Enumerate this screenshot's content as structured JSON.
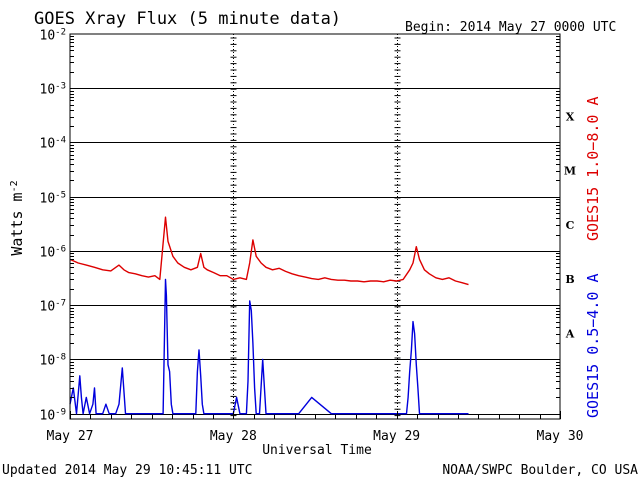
{
  "chart_data": {
    "type": "line",
    "title": "GOES Xray Flux (5 minute data)",
    "begin_label": "Begin:  2014 May 27 0000 UTC",
    "ylabel_base": "Watts m",
    "ylabel_exp": "-2",
    "xlabel": "Universal Time",
    "x_ticks": [
      "May 27",
      "May 28",
      "May 29",
      "May 30"
    ],
    "x_range_days": [
      0,
      3
    ],
    "y_scale": "log",
    "y_ticks": [
      {
        "base": "10",
        "exp": "-2",
        "value": 0.01
      },
      {
        "base": "10",
        "exp": "-3",
        "value": 0.001
      },
      {
        "base": "10",
        "exp": "-4",
        "value": 0.0001
      },
      {
        "base": "10",
        "exp": "-5",
        "value": 1e-05
      },
      {
        "base": "10",
        "exp": "-6",
        "value": 1e-06
      },
      {
        "base": "10",
        "exp": "-7",
        "value": 1e-07
      },
      {
        "base": "10",
        "exp": "-8",
        "value": 1e-08
      },
      {
        "base": "10",
        "exp": "-9",
        "value": 1e-09
      }
    ],
    "ylim": [
      8e-10,
      0.01
    ],
    "flare_classes": [
      {
        "label": "X",
        "value": 0.000316
      },
      {
        "label": "M",
        "value": 3.16e-05
      },
      {
        "label": "C",
        "value": 3.16e-06
      },
      {
        "label": "B",
        "value": 3.16e-07
      },
      {
        "label": "A",
        "value": 3.16e-08
      }
    ],
    "series": [
      {
        "name": "GOES15 1.0−8.0 A",
        "color": "#dd0000",
        "x": [
          0.0,
          0.05,
          0.1,
          0.15,
          0.2,
          0.25,
          0.3,
          0.33,
          0.36,
          0.4,
          0.44,
          0.48,
          0.52,
          0.55,
          0.585,
          0.6,
          0.63,
          0.66,
          0.7,
          0.74,
          0.78,
          0.8,
          0.82,
          0.84,
          0.88,
          0.92,
          0.96,
          1.0,
          1.04,
          1.08,
          1.1,
          1.12,
          1.14,
          1.17,
          1.2,
          1.24,
          1.28,
          1.32,
          1.36,
          1.4,
          1.44,
          1.48,
          1.52,
          1.56,
          1.6,
          1.64,
          1.68,
          1.72,
          1.76,
          1.8,
          1.84,
          1.88,
          1.92,
          1.96,
          2.0,
          2.04,
          2.08,
          2.1,
          2.12,
          2.14,
          2.17,
          2.2,
          2.24,
          2.28,
          2.32,
          2.36,
          2.4,
          2.44
        ],
        "values": [
          7e-07,
          6e-07,
          5.5e-07,
          5e-07,
          4.5e-07,
          4.3e-07,
          5.5e-07,
          4.5e-07,
          4e-07,
          3.8e-07,
          3.5e-07,
          3.3e-07,
          3.5e-07,
          3e-07,
          4.2e-06,
          1.5e-06,
          8e-07,
          6e-07,
          5e-07,
          4.5e-07,
          5e-07,
          9e-07,
          5e-07,
          4.5e-07,
          4e-07,
          3.5e-07,
          3.5e-07,
          3e-07,
          3.2e-07,
          3e-07,
          6e-07,
          1.6e-06,
          8e-07,
          6e-07,
          5e-07,
          4.5e-07,
          4.8e-07,
          4.2e-07,
          3.8e-07,
          3.5e-07,
          3.3e-07,
          3.1e-07,
          3e-07,
          3.2e-07,
          3e-07,
          2.9e-07,
          2.9e-07,
          2.8e-07,
          2.8e-07,
          2.7e-07,
          2.8e-07,
          2.8e-07,
          2.7e-07,
          2.9e-07,
          2.8e-07,
          3e-07,
          4.5e-07,
          6e-07,
          1.2e-06,
          7e-07,
          4.5e-07,
          3.8e-07,
          3.2e-07,
          3e-07,
          3.2e-07,
          2.8e-07,
          2.6e-07,
          2.4e-07
        ]
      },
      {
        "name": "GOES15 0.5−4.0 A",
        "color": "#0000dd",
        "x": [
          0.0,
          0.02,
          0.04,
          0.06,
          0.07,
          0.08,
          0.1,
          0.12,
          0.14,
          0.15,
          0.16,
          0.18,
          0.2,
          0.22,
          0.24,
          0.26,
          0.28,
          0.3,
          0.32,
          0.34,
          0.36,
          0.4,
          0.44,
          0.5,
          0.54,
          0.57,
          0.585,
          0.59,
          0.6,
          0.61,
          0.62,
          0.63,
          0.64,
          0.66,
          0.7,
          0.74,
          0.77,
          0.78,
          0.79,
          0.8,
          0.81,
          0.82,
          0.84,
          0.86,
          0.88,
          0.9,
          0.92,
          0.95,
          1.0,
          1.02,
          1.04,
          1.06,
          1.08,
          1.09,
          1.1,
          1.11,
          1.12,
          1.13,
          1.14,
          1.16,
          1.18,
          1.2,
          1.22,
          1.24,
          1.26,
          1.3,
          1.4,
          1.48,
          1.6,
          1.8,
          2.0,
          2.04,
          2.06,
          2.07,
          2.08,
          2.09,
          2.1,
          2.11,
          2.12,
          2.13,
          2.14,
          2.16,
          2.2,
          2.3,
          2.4,
          2.44
        ],
        "values": [
          1.5e-09,
          3e-09,
          1e-09,
          5e-09,
          2e-09,
          1e-09,
          2e-09,
          1e-09,
          1.5e-09,
          3e-09,
          1e-09,
          1e-09,
          1e-09,
          1.5e-09,
          1e-09,
          1e-09,
          1e-09,
          1.5e-09,
          7e-09,
          1e-09,
          1e-09,
          1e-09,
          1e-09,
          1e-09,
          1e-09,
          1e-09,
          3e-07,
          1.5e-07,
          8e-09,
          6e-09,
          1.5e-09,
          1e-09,
          1e-09,
          1e-09,
          1e-09,
          1e-09,
          1e-09,
          6e-09,
          1.5e-08,
          5e-09,
          1.5e-09,
          1e-09,
          1e-09,
          1e-09,
          1e-09,
          1e-09,
          1e-09,
          1e-09,
          1e-09,
          2e-09,
          1e-09,
          1e-09,
          1e-09,
          4e-09,
          1.2e-07,
          8e-08,
          2e-08,
          3e-09,
          1e-09,
          1e-09,
          1e-08,
          1e-09,
          1e-09,
          1e-09,
          1e-09,
          1e-09,
          1e-09,
          2e-09,
          1e-09,
          1e-09,
          1e-09,
          1e-09,
          1e-09,
          2e-09,
          6e-09,
          1.5e-08,
          5e-08,
          3e-08,
          8e-09,
          3e-09,
          1e-09,
          1e-09,
          1e-09,
          1e-09,
          1e-09,
          1e-09
        ]
      }
    ],
    "grid": true
  },
  "footer": {
    "updated": "Updated 2014 May 29 10:45:11 UTC",
    "credit": "NOAA/SWPC Boulder, CO USA"
  }
}
